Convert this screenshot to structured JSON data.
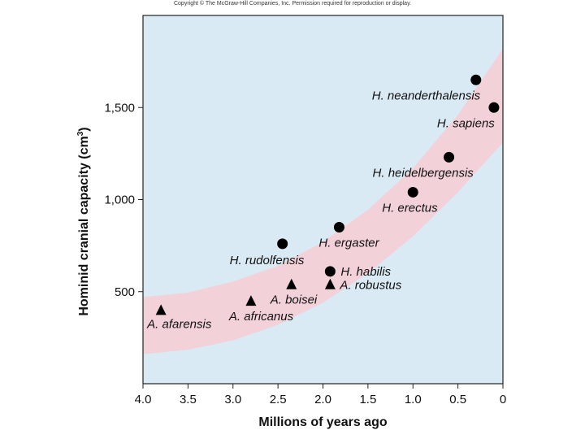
{
  "header": {
    "copyright": "Copyright © The McGraw-Hill Companies, Inc. Permission required for reproduction or display."
  },
  "colors": {
    "plot_background": "#d9eaf4",
    "band": "#f2d2d8",
    "marker": "#000000"
  },
  "chart_data": {
    "type": "scatter",
    "title": "",
    "xlabel": "Millions of years ago",
    "ylabel_main": "Hominid cranial capacity (cm",
    "ylabel_sup": "3",
    "ylabel_close": ")",
    "xlim": [
      4.0,
      0
    ],
    "ylim": [
      0,
      2000
    ],
    "x_reversed": true,
    "x_ticks": [
      4.0,
      3.5,
      3.0,
      2.5,
      2.0,
      1.5,
      1.0,
      0.5,
      0
    ],
    "x_tick_labels": [
      "4.0",
      "3.5",
      "3.0",
      "2.5",
      "2.0",
      "1.5",
      "1.0",
      "0.5",
      "0"
    ],
    "y_ticks": [
      500,
      1000,
      1500
    ],
    "y_tick_labels": [
      "500",
      "1,000",
      "1,500"
    ],
    "grid": false,
    "legend": "none",
    "trend_band": {
      "x": [
        4.0,
        3.5,
        3.0,
        2.5,
        2.0,
        1.5,
        1.0,
        0.5,
        0
      ],
      "lower": [
        160,
        185,
        235,
        320,
        440,
        600,
        800,
        1040,
        1310
      ],
      "upper": [
        470,
        495,
        555,
        640,
        770,
        945,
        1170,
        1460,
        1820
      ]
    },
    "series": [
      {
        "marker": "triangle",
        "points": [
          {
            "label": "A. afarensis",
            "x": 3.8,
            "y": 400
          },
          {
            "label": "A. africanus",
            "x": 2.8,
            "y": 450
          },
          {
            "label": "A. boisei",
            "x": 2.35,
            "y": 540
          },
          {
            "label": "A. robustus",
            "x": 1.92,
            "y": 540
          }
        ]
      },
      {
        "marker": "circle",
        "points": [
          {
            "label": "H. rudolfensis",
            "x": 2.45,
            "y": 760
          },
          {
            "label": "H. ergaster",
            "x": 1.82,
            "y": 850
          },
          {
            "label": "H. habilis",
            "x": 1.92,
            "y": 610
          },
          {
            "label": "H. erectus",
            "x": 1.0,
            "y": 1040
          },
          {
            "label": "H. heidelbergensis",
            "x": 0.6,
            "y": 1230
          },
          {
            "label": "H. neanderthalensis",
            "x": 0.3,
            "y": 1650
          },
          {
            "label": "H. sapiens",
            "x": 0.1,
            "y": 1500
          }
        ]
      }
    ]
  }
}
